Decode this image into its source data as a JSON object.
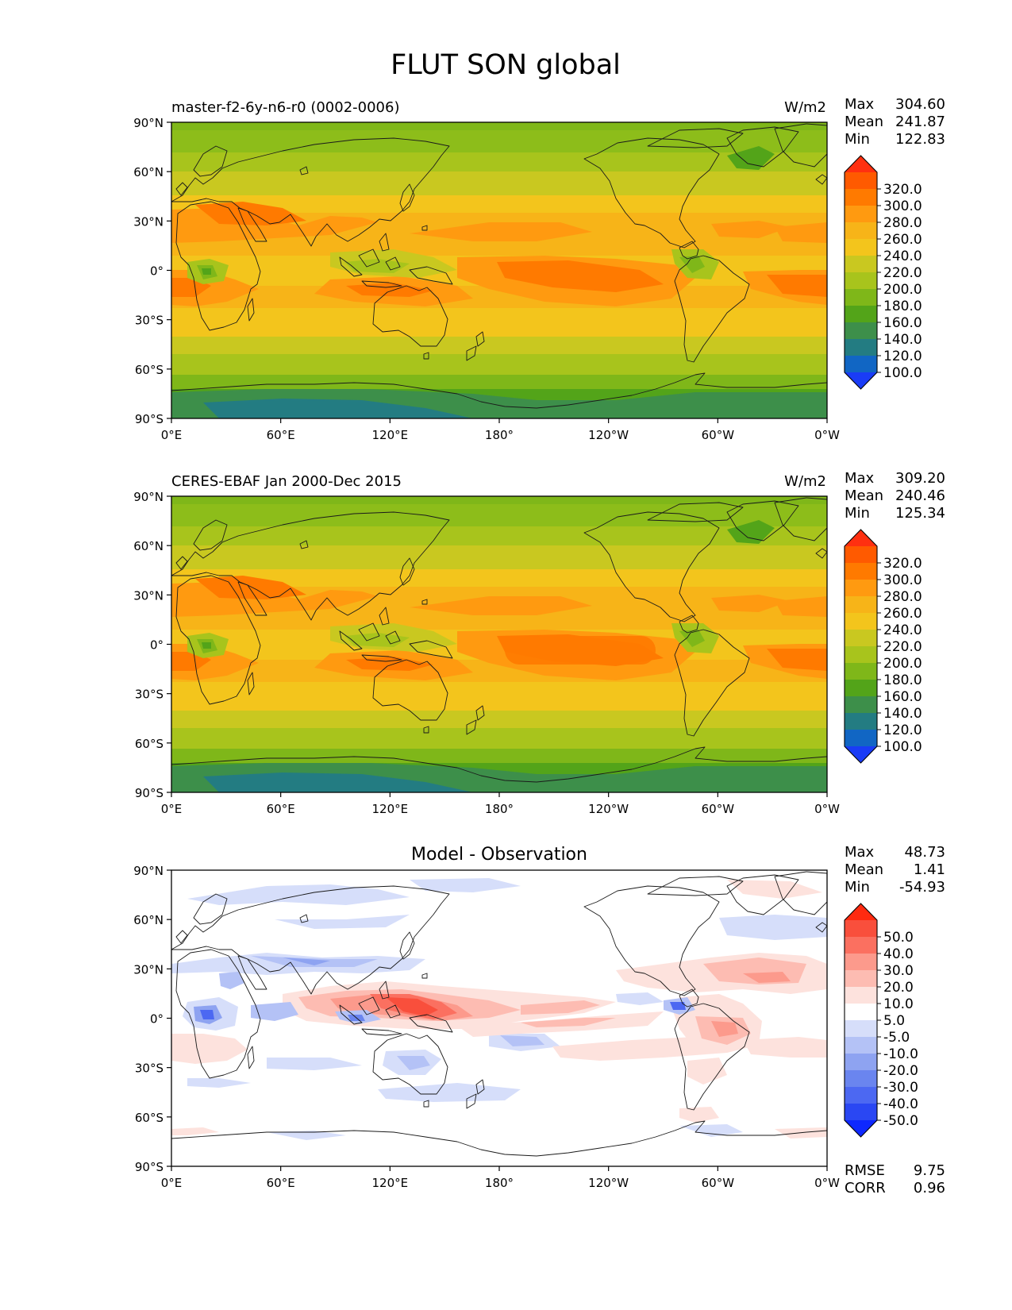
{
  "title": "FLUT SON global",
  "x_ticks": [
    "0°E",
    "60°E",
    "120°E",
    "180°",
    "120°W",
    "60°W",
    "0°W"
  ],
  "y_ticks": [
    "90°N",
    "60°N",
    "30°N",
    "0°",
    "30°S",
    "60°S",
    "90°S"
  ],
  "stat_labels": {
    "max": "Max",
    "mean": "Mean",
    "min": "Min",
    "rmse": "RMSE",
    "corr": "CORR"
  },
  "panels": [
    {
      "id": "model",
      "left_title": "master-f2-6y-n6-r0 (0002-0006)",
      "center_title": "",
      "units": "W/m2",
      "stats": {
        "max": "304.60",
        "mean": "241.87",
        "min": "122.83"
      },
      "colorbar": {
        "levels": [
          "320.0",
          "300.0",
          "280.0",
          "260.0",
          "240.0",
          "220.0",
          "200.0",
          "180.0",
          "160.0",
          "140.0",
          "120.0",
          "100.0"
        ],
        "colors": [
          "#ff3010",
          "#ff5a00",
          "#ff7a00",
          "#ff9a10",
          "#f7b418",
          "#f3c51c",
          "#c9c820",
          "#a8c41c",
          "#7fb719",
          "#53a419",
          "#3d8f4a",
          "#237c82",
          "#1166c4",
          "#1a3cf6"
        ]
      }
    },
    {
      "id": "observation",
      "left_title": "CERES-EBAF Jan 2000-Dec 2015",
      "center_title": "",
      "units": "W/m2",
      "stats": {
        "max": "309.20",
        "mean": "240.46",
        "min": "125.34"
      },
      "colorbar": {
        "levels": [
          "320.0",
          "300.0",
          "280.0",
          "260.0",
          "240.0",
          "220.0",
          "200.0",
          "180.0",
          "160.0",
          "140.0",
          "120.0",
          "100.0"
        ],
        "colors": [
          "#ff3010",
          "#ff5a00",
          "#ff7a00",
          "#ff9a10",
          "#f7b418",
          "#f3c51c",
          "#c9c820",
          "#a8c41c",
          "#7fb719",
          "#53a419",
          "#3d8f4a",
          "#237c82",
          "#1166c4",
          "#1a3cf6"
        ]
      }
    },
    {
      "id": "difference",
      "left_title": "",
      "center_title": "Model - Observation",
      "units": "",
      "stats": {
        "max": "48.73",
        "mean": "1.41",
        "min": "-54.93",
        "rmse": "9.75",
        "corr": "0.96"
      },
      "colorbar": {
        "levels": [
          "50.0",
          "40.0",
          "30.0",
          "20.0",
          "10.0",
          "5.0",
          "-5.0",
          "-10.0",
          "-20.0",
          "-30.0",
          "-40.0",
          "-50.0"
        ],
        "colors": [
          "#ff2a10",
          "#f94f3c",
          "#fb7060",
          "#fc9a8c",
          "#fdbcb2",
          "#fde2dd",
          "#ffffff",
          "#d6defa",
          "#b4c2f6",
          "#8ea3f1",
          "#6a85ef",
          "#4c68f2",
          "#2a47f3",
          "#0e28ff"
        ]
      }
    }
  ]
}
